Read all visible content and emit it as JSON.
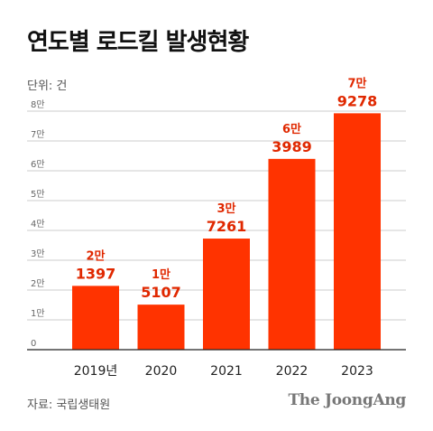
{
  "title": "연도별 로드킬 발생현황",
  "unit_label": "단위: 건",
  "source": "자료: 국립생태원",
  "brand": "The JoongAng",
  "colors": {
    "bar": "#ff3300",
    "label": "#e02800",
    "grid": "#cccccc",
    "axis": "#222222",
    "tick": "#666666"
  },
  "chart_data": {
    "type": "bar",
    "title": "연도별 로드킬 발생현황",
    "ylabel": "단위: 건",
    "categories": [
      "2019년",
      "2020",
      "2021",
      "2022",
      "2023"
    ],
    "values": [
      21397,
      15107,
      37261,
      63989,
      79278
    ],
    "value_labels": [
      [
        "2만",
        "1397"
      ],
      [
        "1만",
        "5107"
      ],
      [
        "3만",
        "7261"
      ],
      [
        "6만",
        "3989"
      ],
      [
        "7만",
        "9278"
      ]
    ],
    "y_ticks": [
      {
        "value": 0,
        "label": "0"
      },
      {
        "value": 10000,
        "label": "1만"
      },
      {
        "value": 20000,
        "label": "2만"
      },
      {
        "value": 30000,
        "label": "3만"
      },
      {
        "value": 40000,
        "label": "4만"
      },
      {
        "value": 50000,
        "label": "5만"
      },
      {
        "value": 60000,
        "label": "6만"
      },
      {
        "value": 70000,
        "label": "7만"
      },
      {
        "value": 80000,
        "label": "8만"
      }
    ],
    "ylim": [
      0,
      80000
    ],
    "grid": true,
    "legend": "none"
  }
}
